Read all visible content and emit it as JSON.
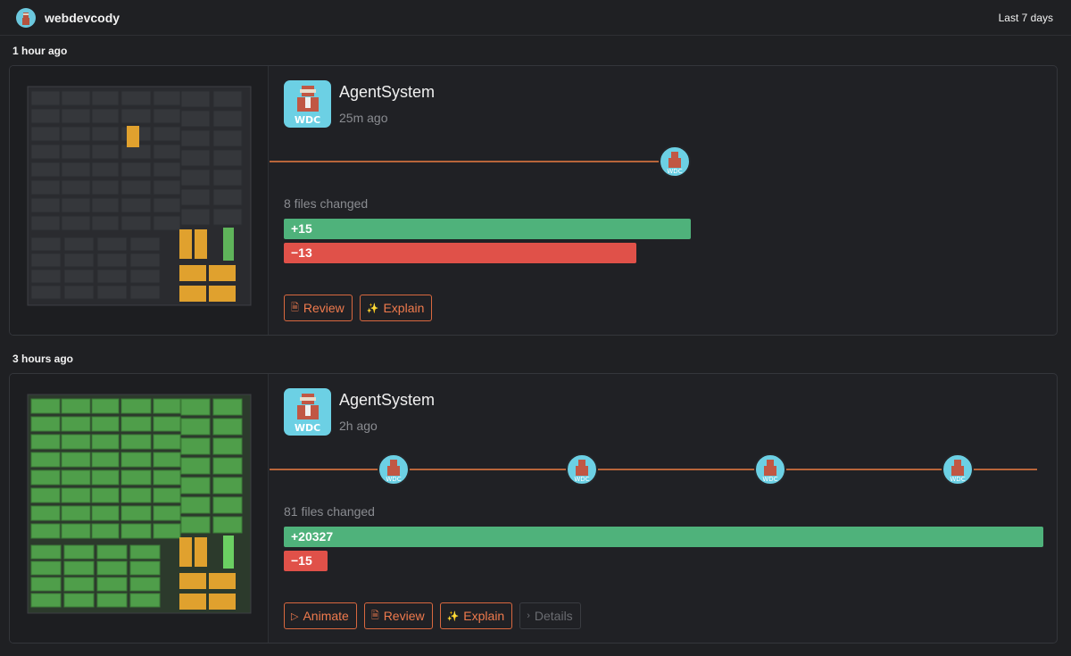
{
  "header": {
    "username": "webdevcody",
    "range": "Last 7 days"
  },
  "groups": [
    {
      "time_label": "1 hour ago",
      "agent": "AgentSystem",
      "age": "25m ago",
      "files_changed": "8 files changed",
      "additions": "+15",
      "deletions": "−13",
      "actions": [
        {
          "icon": "🗎",
          "label": "Review"
        },
        {
          "icon": "✨",
          "label": "Explain"
        }
      ]
    },
    {
      "time_label": "3 hours ago",
      "agent": "AgentSystem",
      "age": "2h ago",
      "files_changed": "81 files changed",
      "additions": "+20327",
      "deletions": "−15",
      "actions": [
        {
          "icon": "▷",
          "label": "Animate"
        },
        {
          "icon": "🗎",
          "label": "Review"
        },
        {
          "icon": "✨",
          "label": "Explain"
        },
        {
          "icon": "›",
          "label": "Details"
        }
      ]
    }
  ],
  "colors": {
    "accent": "#ef7a4d",
    "added": "#4fb27b",
    "deleted": "#e05149",
    "avatar_bg": "#6cd0e4",
    "treemap_changed": "#e0a12e",
    "treemap_added": "#5fb45a"
  }
}
